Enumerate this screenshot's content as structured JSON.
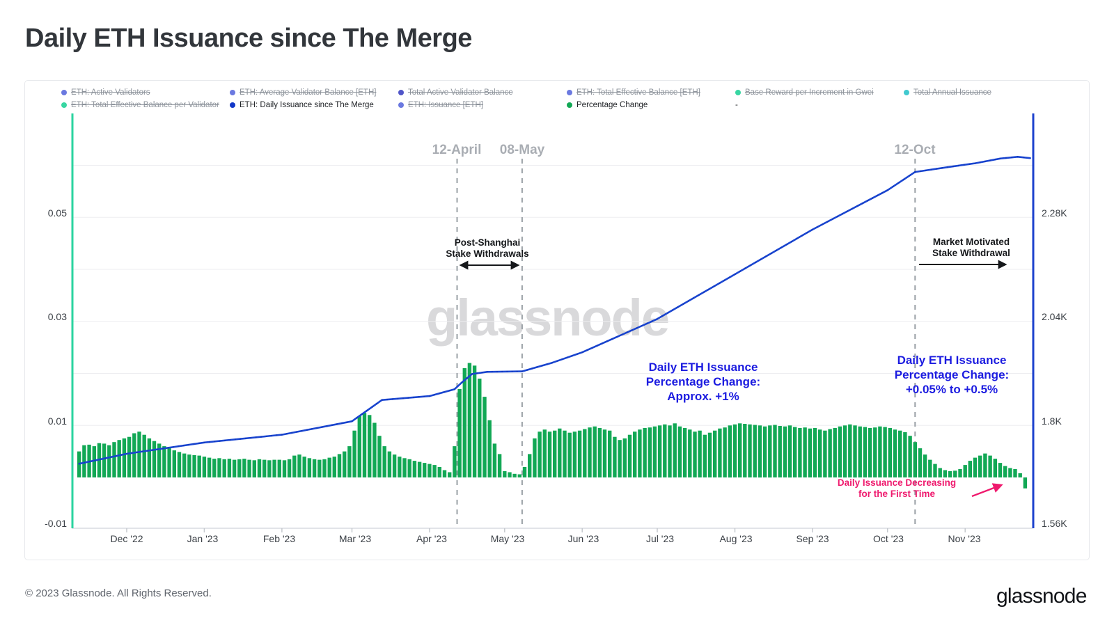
{
  "page": {
    "title": "Daily ETH Issuance since The Merge",
    "footer_copyright": "© 2023 Glassnode. All Rights Reserved.",
    "brand_logo": "glassnode",
    "watermark": "glassnode"
  },
  "legend": {
    "items": [
      {
        "label": "ETH: Active Validators",
        "color": "#6b79e0",
        "struck": true
      },
      {
        "label": "ETH: Average Validator Balance [ETH]",
        "color": "#6b79e0",
        "struck": true
      },
      {
        "label": "Total Active Validator Balance",
        "color": "#5156c8",
        "struck": true
      },
      {
        "label": "ETH: Total Effective Balance [ETH]",
        "color": "#6b79e0",
        "struck": true
      },
      {
        "label": "Base Reward per Increment in Gwei",
        "color": "#38d6a2",
        "struck": true
      },
      {
        "label": "Total Annual Issuance",
        "color": "#41c9cf",
        "struck": true
      },
      {
        "label": "ETH: Total Effective Balance per Validator",
        "color": "#38d6a2",
        "struck": true
      },
      {
        "label": "ETH: Daily Issuance since The Merge",
        "color": "#1238c8",
        "struck": false
      },
      {
        "label": "ETH: Issuance [ETH]",
        "color": "#6b79e0",
        "struck": true
      },
      {
        "label": "Percentage Change",
        "color": "#12a855",
        "struck": false
      },
      {
        "label": "-",
        "color": null,
        "struck": false
      }
    ]
  },
  "annotations": {
    "post_shanghai": "Post-Shanghai\nStake Withdrawals",
    "market_motivated": "Market Motivated\nStake Withdrawal",
    "pct_change_mid": "Daily ETH Issuance\nPercentage Change:\nApprox. +1%",
    "pct_change_right": "Daily ETH Issuance\nPercentage Change:\n+0.05% to +0.5%",
    "decreasing": "Daily Issuance Decreasing\nfor the First Time"
  },
  "chart_data": {
    "type": "mixed",
    "title": "Daily ETH Issuance since The Merge",
    "grid": true,
    "x_ticks": [
      "Dec '22",
      "Jan '23",
      "Feb '23",
      "Mar '23",
      "Apr '23",
      "May '23",
      "Jun '23",
      "Jul '23",
      "Aug '23",
      "Sep '23",
      "Oct '23",
      "Nov '23"
    ],
    "x_tick_dates": [
      "2022-12-01",
      "2023-01-01",
      "2023-02-01",
      "2023-03-01",
      "2023-04-01",
      "2023-05-01",
      "2023-06-01",
      "2023-07-01",
      "2023-08-01",
      "2023-09-01",
      "2023-10-01",
      "2023-11-01"
    ],
    "y_left": {
      "name": "Percentage Change",
      "ticks": [
        "0.05",
        "0.03",
        "0.01",
        "-0.01"
      ],
      "tick_values": [
        0.05,
        0.03,
        0.01,
        -0.01
      ],
      "grid_values": [
        0.06,
        0.05,
        0.04,
        0.03,
        0.02,
        0.01
      ],
      "range": [
        -0.013,
        0.07
      ]
    },
    "y_right": {
      "name": "ETH: Daily Issuance since The Merge",
      "ticks": [
        "2.28K",
        "2.04K",
        "1.8K",
        "1.56K"
      ],
      "tick_values": [
        2280,
        2040,
        1800,
        1560
      ],
      "range": [
        1560,
        2520
      ]
    },
    "events": [
      {
        "label": "12-April",
        "date": "2023-04-12"
      },
      {
        "label": "08-May",
        "date": "2023-05-08"
      },
      {
        "label": "12-Oct",
        "date": "2023-10-12"
      }
    ],
    "series": [
      {
        "name": "Percentage Change",
        "type": "bar",
        "color": "#12a855",
        "start_date": "2022-11-12",
        "step_days": 2,
        "values": [
          0.005,
          0.0062,
          0.0063,
          0.006,
          0.0066,
          0.0065,
          0.0062,
          0.0068,
          0.0072,
          0.0075,
          0.0078,
          0.0085,
          0.0088,
          0.0082,
          0.0075,
          0.007,
          0.0065,
          0.006,
          0.0056,
          0.0052,
          0.0049,
          0.0046,
          0.0044,
          0.0043,
          0.0042,
          0.004,
          0.0038,
          0.0036,
          0.0037,
          0.0035,
          0.0036,
          0.0034,
          0.0035,
          0.0036,
          0.0034,
          0.0033,
          0.0035,
          0.0034,
          0.0033,
          0.0034,
          0.0034,
          0.0033,
          0.0035,
          0.0042,
          0.0044,
          0.004,
          0.0037,
          0.0035,
          0.0034,
          0.0035,
          0.0038,
          0.004,
          0.0045,
          0.005,
          0.006,
          0.009,
          0.0118,
          0.0124,
          0.012,
          0.0105,
          0.008,
          0.006,
          0.005,
          0.0044,
          0.004,
          0.0037,
          0.0035,
          0.0032,
          0.003,
          0.0028,
          0.0026,
          0.0024,
          0.002,
          0.0014,
          0.001,
          0.006,
          0.017,
          0.021,
          0.022,
          0.0215,
          0.019,
          0.0155,
          0.011,
          0.0065,
          0.0045,
          0.0012,
          0.001,
          0.0007,
          0.0006,
          0.002,
          0.0045,
          0.0075,
          0.0088,
          0.0092,
          0.0088,
          0.009,
          0.0094,
          0.009,
          0.0086,
          0.0088,
          0.009,
          0.0093,
          0.0096,
          0.0098,
          0.0095,
          0.0092,
          0.009,
          0.0078,
          0.0072,
          0.0075,
          0.0082,
          0.0088,
          0.0092,
          0.0095,
          0.0096,
          0.0098,
          0.01,
          0.0102,
          0.01,
          0.0104,
          0.0098,
          0.0095,
          0.0092,
          0.0088,
          0.009,
          0.0082,
          0.0086,
          0.009,
          0.0094,
          0.0096,
          0.01,
          0.0102,
          0.0104,
          0.0103,
          0.0102,
          0.0101,
          0.01,
          0.0098,
          0.01,
          0.0101,
          0.0099,
          0.0098,
          0.01,
          0.0097,
          0.0095,
          0.0096,
          0.0094,
          0.0095,
          0.0092,
          0.009,
          0.0093,
          0.0095,
          0.0098,
          0.01,
          0.0102,
          0.01,
          0.0098,
          0.0097,
          0.0095,
          0.0096,
          0.0098,
          0.0097,
          0.0095,
          0.0092,
          0.009,
          0.0087,
          0.008,
          0.0068,
          0.0056,
          0.0044,
          0.0034,
          0.0026,
          0.0018,
          0.0014,
          0.0012,
          0.0013,
          0.0016,
          0.0024,
          0.0032,
          0.0038,
          0.0042,
          0.0046,
          0.0042,
          0.0036,
          0.0028,
          0.0022,
          0.0018,
          0.0016,
          0.0008,
          -0.0021
        ]
      },
      {
        "name": "ETH: Daily Issuance since The Merge",
        "type": "line",
        "color": "#1a46d2",
        "unit": "K ETH",
        "points": [
          [
            "2022-11-12",
            1.712
          ],
          [
            "2022-12-01",
            1.735
          ],
          [
            "2023-01-01",
            1.761
          ],
          [
            "2023-02-01",
            1.779
          ],
          [
            "2023-03-01",
            1.81
          ],
          [
            "2023-03-13",
            1.859
          ],
          [
            "2023-04-01",
            1.868
          ],
          [
            "2023-04-11",
            1.884
          ],
          [
            "2023-04-14",
            1.9
          ],
          [
            "2023-04-18",
            1.919
          ],
          [
            "2023-04-24",
            1.924
          ],
          [
            "2023-05-08",
            1.925
          ],
          [
            "2023-05-20",
            1.945
          ],
          [
            "2023-06-01",
            1.969
          ],
          [
            "2023-07-01",
            2.046
          ],
          [
            "2023-08-01",
            2.149
          ],
          [
            "2023-09-01",
            2.252
          ],
          [
            "2023-10-01",
            2.343
          ],
          [
            "2023-10-12",
            2.385
          ],
          [
            "2023-10-25",
            2.396
          ],
          [
            "2023-11-05",
            2.405
          ],
          [
            "2023-11-15",
            2.416
          ],
          [
            "2023-11-22",
            2.42
          ],
          [
            "2023-11-27",
            2.417
          ]
        ]
      }
    ]
  }
}
